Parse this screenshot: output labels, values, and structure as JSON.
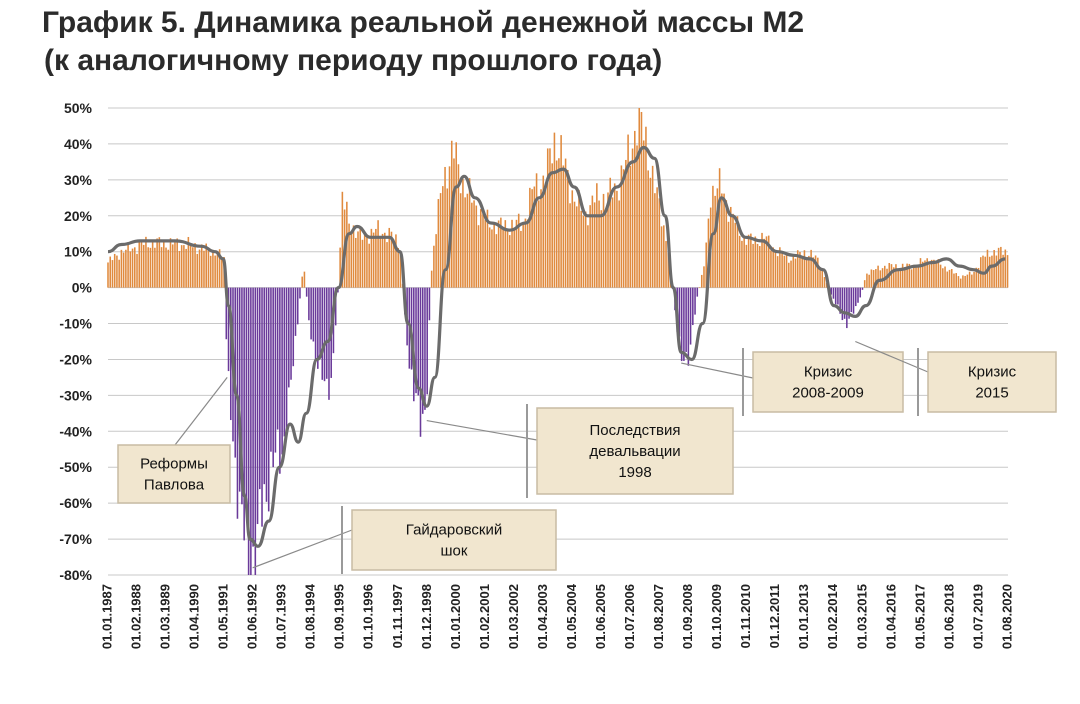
{
  "title": {
    "line1": "График 5. Динамика реальной денежной массы М2",
    "line2": "(к аналогичному  периоду прошлого года)"
  },
  "colors": {
    "positive_bar": "#e08a3e",
    "negative_bar": "#6a3a9a",
    "trend_line": "#6b6b6b",
    "grid": "#c8c8c8",
    "annotation_fill": "#f1e6cf",
    "annotation_border": "#c8bca4"
  },
  "chart_data": {
    "type": "bar",
    "ylim": [
      -80,
      50
    ],
    "y_tick_step": 10,
    "y_ticks": [
      "50%",
      "40%",
      "30%",
      "20%",
      "10%",
      "0%",
      "-10%",
      "-20%",
      "-30%",
      "-40%",
      "-50%",
      "-60%",
      "-70%",
      "-80%"
    ],
    "x_tick_labels": [
      "01.01.1987",
      "01.02.1988",
      "01.03.1989",
      "01.04.1990",
      "01.05.1991",
      "01.06.1992",
      "01.07.1993",
      "01.08.1994",
      "01.09.1995",
      "01.10.1996",
      "01.11.1997",
      "01.12.1998",
      "01.01.2000",
      "01.02.2001",
      "01.03.2002",
      "01.04.2003",
      "01.05.2004",
      "01.06.2005",
      "01.07.2006",
      "01.08.2007",
      "01.09.2008",
      "01.10.2009",
      "01.11.2010",
      "01.12.2011",
      "01.01.2013",
      "01.02.2014",
      "01.03.2015",
      "01.04.2016",
      "01.05.2017",
      "01.06.2018",
      "01.07.2019",
      "01.08.2020"
    ],
    "x_range": [
      1987.0,
      2020.6
    ],
    "grid": "horizontal",
    "bar_series_keyframes": [
      [
        1987.0,
        7
      ],
      [
        1987.5,
        10
      ],
      [
        1988.5,
        12.5
      ],
      [
        1990.0,
        12
      ],
      [
        1991.0,
        10
      ],
      [
        1991.35,
        8
      ],
      [
        1991.45,
        -25
      ],
      [
        1991.7,
        -45
      ],
      [
        1992.0,
        -65
      ],
      [
        1992.3,
        -78
      ],
      [
        1992.55,
        -72
      ],
      [
        1992.8,
        -60
      ],
      [
        1993.1,
        -50
      ],
      [
        1993.5,
        -45
      ],
      [
        1993.8,
        -30
      ],
      [
        1994.0,
        -15
      ],
      [
        1994.3,
        7
      ],
      [
        1994.5,
        -10
      ],
      [
        1994.8,
        -20
      ],
      [
        1995.1,
        -28
      ],
      [
        1995.35,
        -25
      ],
      [
        1995.6,
        0
      ],
      [
        1995.75,
        25
      ],
      [
        1996.0,
        18
      ],
      [
        1996.5,
        14
      ],
      [
        1997.0,
        16
      ],
      [
        1997.5,
        15
      ],
      [
        1997.9,
        12
      ],
      [
        1998.1,
        -10
      ],
      [
        1998.4,
        -30
      ],
      [
        1998.7,
        -37
      ],
      [
        1998.9,
        -30
      ],
      [
        1999.1,
        8
      ],
      [
        1999.5,
        30
      ],
      [
        1999.9,
        38
      ],
      [
        2000.3,
        28
      ],
      [
        2000.8,
        22
      ],
      [
        2001.2,
        18
      ],
      [
        2001.8,
        17
      ],
      [
        2002.5,
        18
      ],
      [
        2002.9,
        28
      ],
      [
        2003.3,
        30
      ],
      [
        2003.7,
        42
      ],
      [
        2004.0,
        35
      ],
      [
        2004.4,
        25
      ],
      [
        2004.8,
        20
      ],
      [
        2005.2,
        25
      ],
      [
        2005.6,
        25
      ],
      [
        2006.0,
        28
      ],
      [
        2006.5,
        38
      ],
      [
        2006.8,
        48
      ],
      [
        2007.1,
        40
      ],
      [
        2007.5,
        25
      ],
      [
        2007.9,
        12
      ],
      [
        2008.05,
        2
      ],
      [
        2008.15,
        -5
      ],
      [
        2008.4,
        -21
      ],
      [
        2008.7,
        -18
      ],
      [
        2009.0,
        -3
      ],
      [
        2009.3,
        8
      ],
      [
        2009.5,
        27
      ],
      [
        2009.9,
        28
      ],
      [
        2010.3,
        20
      ],
      [
        2010.7,
        14
      ],
      [
        2011.1,
        13
      ],
      [
        2011.5,
        14
      ],
      [
        2012.0,
        10
      ],
      [
        2012.5,
        8
      ],
      [
        2013.0,
        10
      ],
      [
        2013.5,
        8
      ],
      [
        2013.9,
        0
      ],
      [
        2014.0,
        -2
      ],
      [
        2014.4,
        -8
      ],
      [
        2014.6,
        -10
      ],
      [
        2014.9,
        -6
      ],
      [
        2015.2,
        0
      ],
      [
        2015.3,
        4
      ],
      [
        2016.0,
        6
      ],
      [
        2017.0,
        6
      ],
      [
        2017.7,
        8
      ],
      [
        2018.4,
        5
      ],
      [
        2018.8,
        3
      ],
      [
        2019.3,
        4
      ],
      [
        2019.6,
        8
      ],
      [
        2020.0,
        10
      ],
      [
        2020.5,
        10
      ]
    ],
    "trend_line_keyframes": [
      [
        1987.0,
        10
      ],
      [
        1987.5,
        12
      ],
      [
        1988.2,
        13
      ],
      [
        1989.5,
        13
      ],
      [
        1990.5,
        11.5
      ],
      [
        1991.0,
        10
      ],
      [
        1991.3,
        8
      ],
      [
        1991.5,
        -5
      ],
      [
        1991.8,
        -30
      ],
      [
        1992.1,
        -58
      ],
      [
        1992.3,
        -70
      ],
      [
        1992.6,
        -72
      ],
      [
        1993.0,
        -65
      ],
      [
        1993.4,
        -50
      ],
      [
        1993.8,
        -38
      ],
      [
        1994.1,
        -43
      ],
      [
        1994.4,
        -35
      ],
      [
        1994.8,
        -20
      ],
      [
        1995.2,
        -15
      ],
      [
        1995.6,
        0
      ],
      [
        1996.0,
        15
      ],
      [
        1996.3,
        17
      ],
      [
        1996.8,
        14
      ],
      [
        1997.5,
        14
      ],
      [
        1997.9,
        10
      ],
      [
        1998.2,
        -10
      ],
      [
        1998.6,
        -28
      ],
      [
        1998.9,
        -33
      ],
      [
        1999.2,
        -25
      ],
      [
        1999.6,
        5
      ],
      [
        2000.0,
        28
      ],
      [
        2000.3,
        31
      ],
      [
        2000.7,
        25
      ],
      [
        2001.3,
        18
      ],
      [
        2002.0,
        16
      ],
      [
        2002.6,
        18
      ],
      [
        2003.1,
        25
      ],
      [
        2003.6,
        32
      ],
      [
        2004.0,
        33
      ],
      [
        2004.4,
        28
      ],
      [
        2004.9,
        20
      ],
      [
        2005.4,
        20
      ],
      [
        2006.0,
        28
      ],
      [
        2006.6,
        35
      ],
      [
        2007.0,
        39
      ],
      [
        2007.4,
        36
      ],
      [
        2007.8,
        20
      ],
      [
        2008.1,
        0
      ],
      [
        2008.4,
        -18
      ],
      [
        2008.8,
        -20
      ],
      [
        2009.2,
        -10
      ],
      [
        2009.6,
        15
      ],
      [
        2009.9,
        25
      ],
      [
        2010.3,
        20
      ],
      [
        2010.8,
        14
      ],
      [
        2011.4,
        13
      ],
      [
        2012.0,
        10
      ],
      [
        2012.6,
        9
      ],
      [
        2013.2,
        8
      ],
      [
        2013.7,
        5
      ],
      [
        2014.1,
        -5
      ],
      [
        2014.5,
        -7
      ],
      [
        2014.9,
        -8
      ],
      [
        2015.3,
        -5
      ],
      [
        2015.8,
        2
      ],
      [
        2016.5,
        5
      ],
      [
        2017.2,
        6
      ],
      [
        2017.8,
        7
      ],
      [
        2018.3,
        8
      ],
      [
        2018.8,
        6
      ],
      [
        2019.3,
        5
      ],
      [
        2019.7,
        4
      ],
      [
        2020.0,
        6
      ],
      [
        2020.5,
        8
      ]
    ],
    "annotations": [
      {
        "id": "pavlov",
        "lines": [
          "Реформы",
          "Павлова"
        ],
        "target": [
          1991.45,
          -25
        ]
      },
      {
        "id": "gaidar",
        "lines": [
          "Гайдаровский",
          "шок"
        ],
        "target": [
          1992.4,
          -78
        ]
      },
      {
        "id": "deval",
        "lines": [
          "Последствия",
          "девальвации",
          "1998"
        ],
        "target": [
          1998.9,
          -37
        ]
      },
      {
        "id": "crisis2008",
        "lines": [
          "Кризис",
          "2008-2009"
        ],
        "target": [
          2008.4,
          -21
        ]
      },
      {
        "id": "crisis2015",
        "lines": [
          "Кризис",
          "2015"
        ],
        "target": [
          2014.9,
          -15
        ]
      }
    ]
  }
}
